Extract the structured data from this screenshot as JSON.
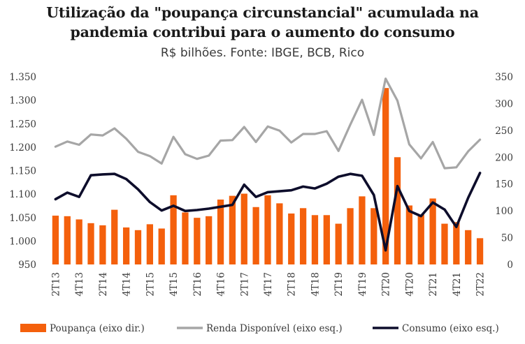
{
  "chart_data": {
    "type": "bar+line",
    "title_line1": "Utilização da \"poupança circunstancial\" acumulada na",
    "title_line2": "pandemia contribui para o aumento do consumo",
    "subtitle": "R$ bilhões. Fonte: IBGE, BCB, Rico",
    "categories": [
      "2T13",
      "3T13",
      "4T13",
      "1T14",
      "2T14",
      "3T14",
      "4T14",
      "1T15",
      "2T15",
      "3T15",
      "4T15",
      "1T16",
      "2T16",
      "3T16",
      "4T16",
      "1T17",
      "2T17",
      "3T17",
      "4T17",
      "1T18",
      "2T18",
      "3T18",
      "4T18",
      "1T19",
      "2T19",
      "3T19",
      "4T19",
      "1T20",
      "2T20",
      "3T20",
      "4T20",
      "1T21",
      "2T21",
      "3T21",
      "4T21",
      "1T22",
      "2T22"
    ],
    "x_tick_labels": [
      "2T13",
      "4T13",
      "2T14",
      "4T14",
      "2T15",
      "4T15",
      "2T16",
      "4T16",
      "2T17",
      "4T17",
      "2T18",
      "4T18",
      "2T19",
      "4T19",
      "2T20",
      "4T20",
      "2T21",
      "4T21",
      "2T22"
    ],
    "left_axis": {
      "min": 950,
      "max": 1350,
      "ticks": [
        "950",
        "1.000",
        "1.050",
        "1.100",
        "1.150",
        "1.200",
        "1.250",
        "1.300",
        "1.350"
      ]
    },
    "right_axis": {
      "min": 0,
      "max": 350,
      "ticks": [
        "0",
        "50",
        "100",
        "150",
        "200",
        "250",
        "300",
        "350"
      ]
    },
    "series": [
      {
        "name": "Poupança (eixo dir.)",
        "type": "bar",
        "axis": "right",
        "color": "#f4600c",
        "values": [
          91,
          90,
          84,
          77,
          73,
          102,
          69,
          64,
          75,
          67,
          129,
          97,
          87,
          90,
          121,
          128,
          132,
          107,
          129,
          114,
          95,
          105,
          92,
          92,
          76,
          105,
          127,
          105,
          329,
          200,
          110,
          93,
          123,
          76,
          79,
          64,
          49
        ]
      },
      {
        "name": "Renda Disponível (eixo esq.)",
        "type": "line",
        "axis": "left",
        "color": "#a6a6a6",
        "values": [
          1201,
          1212,
          1205,
          1227,
          1225,
          1240,
          1218,
          1190,
          1181,
          1165,
          1222,
          1185,
          1175,
          1182,
          1214,
          1215,
          1243,
          1211,
          1244,
          1235,
          1210,
          1228,
          1228,
          1234,
          1192,
          1248,
          1301,
          1226,
          1346,
          1299,
          1206,
          1176,
          1211,
          1155,
          1157,
          1191,
          1216
        ]
      },
      {
        "name": "Consumo (eixo esq.)",
        "type": "line",
        "axis": "left",
        "color": "#0d0d2b",
        "values": [
          1089,
          1103,
          1094,
          1140,
          1142,
          1143,
          1132,
          1110,
          1083,
          1065,
          1075,
          1064,
          1066,
          1069,
          1073,
          1077,
          1120,
          1094,
          1104,
          1106,
          1108,
          1116,
          1112,
          1122,
          1137,
          1143,
          1139,
          1098,
          980,
          1117,
          1064,
          1053,
          1082,
          1067,
          1030,
          1092,
          1145
        ]
      }
    ],
    "legend": [
      {
        "label": "Poupança (eixo dir.)",
        "color": "#f4600c",
        "kind": "bar"
      },
      {
        "label": "Renda Disponível (eixo esq.)",
        "color": "#a6a6a6",
        "kind": "line"
      },
      {
        "label": "Consumo (eixo esq.)",
        "color": "#0d0d2b",
        "kind": "line"
      }
    ],
    "legend_position": "bottom",
    "grid": false
  }
}
